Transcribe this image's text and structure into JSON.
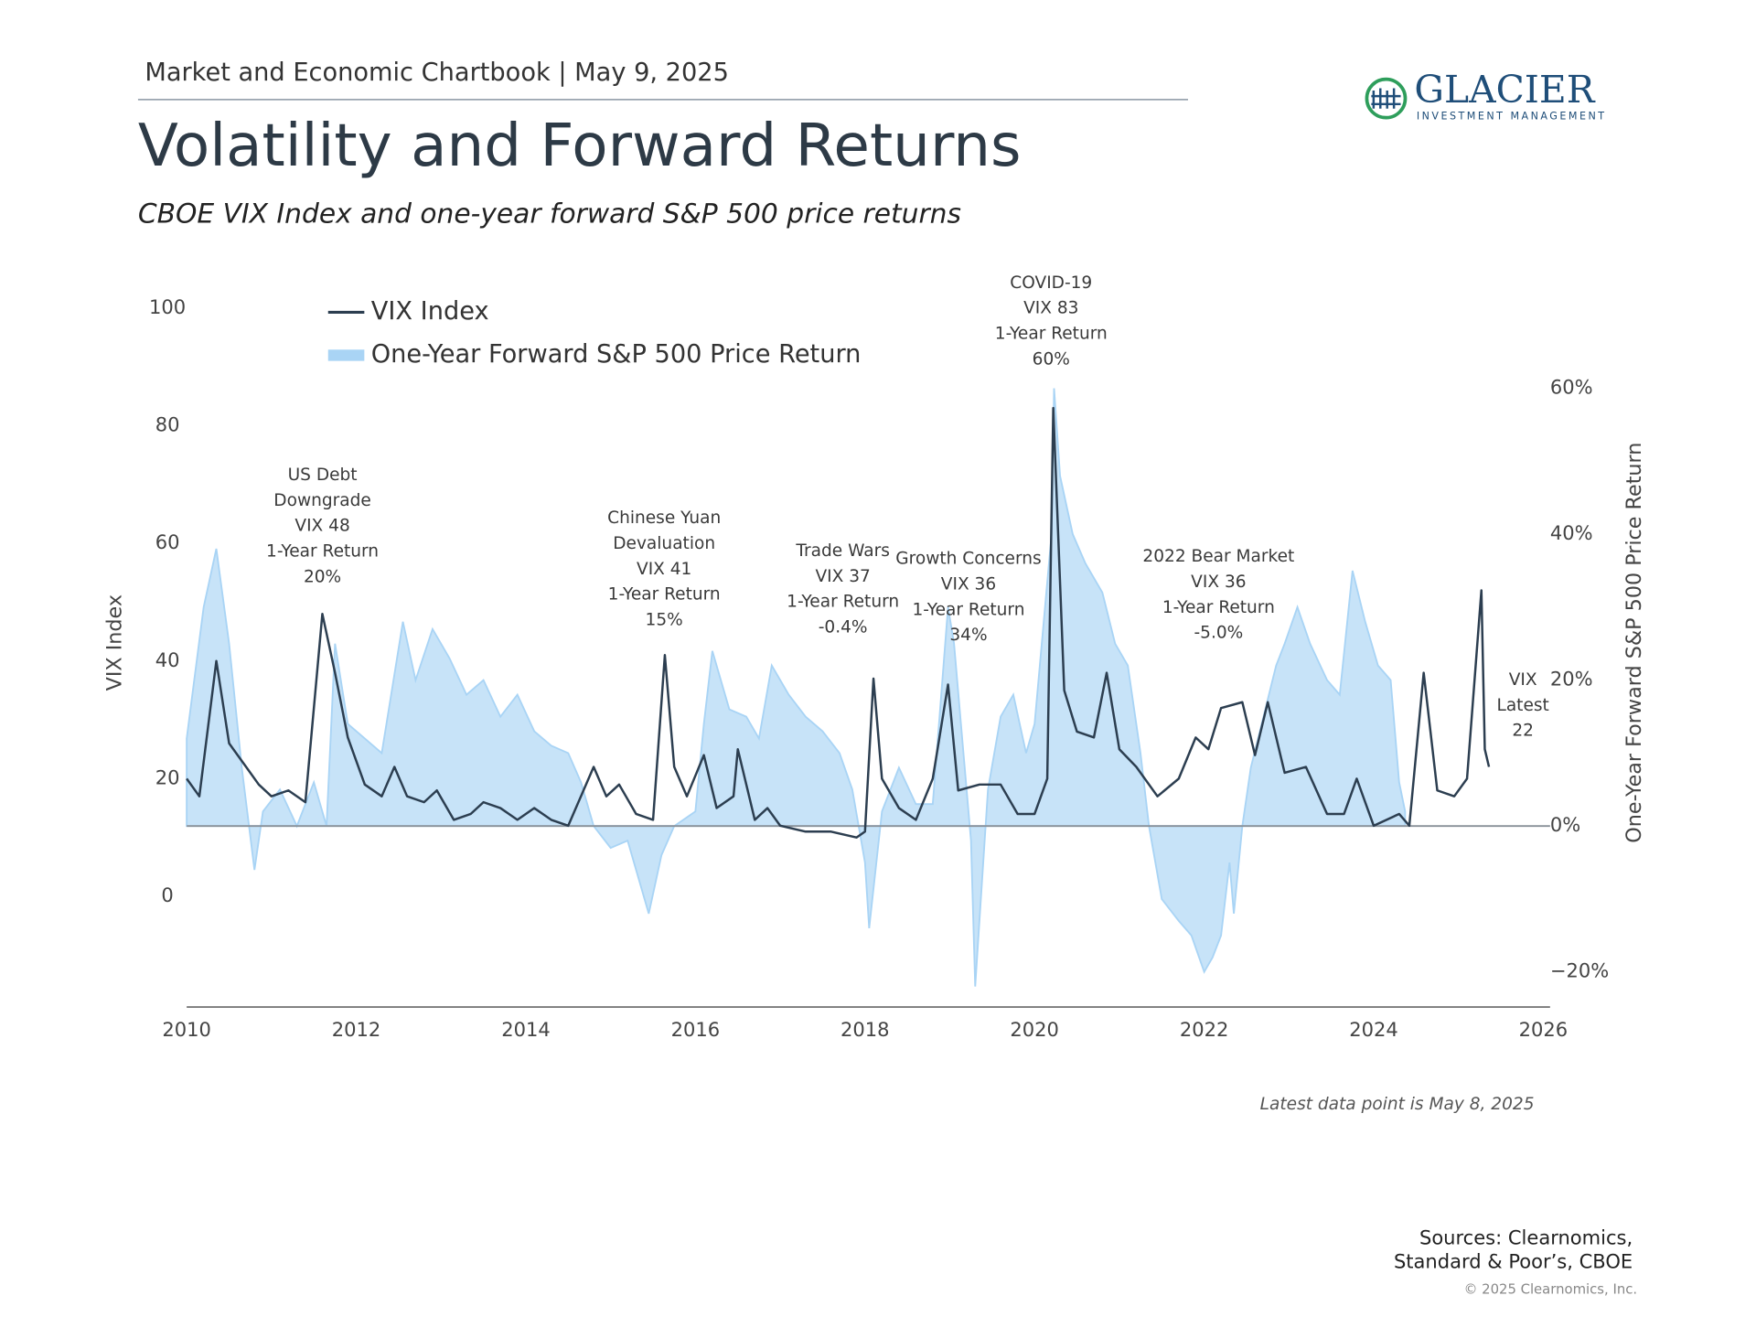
{
  "header": {
    "chartbook": "Market and Economic Chartbook | May 9, 2025"
  },
  "logo": {
    "name": "GLACIER",
    "tagline": "INVESTMENT MANAGEMENT"
  },
  "chart_data": {
    "type": "line",
    "title": "Volatility and Forward Returns",
    "subtitle": "CBOE VIX Index and one-year forward S&P 500 price returns",
    "ylabel": "VIX Index",
    "y2label": "One-Year Forward S&P 500 Price Return",
    "xlim": [
      2010,
      2026
    ],
    "xticks": [
      2010,
      2012,
      2014,
      2016,
      2018,
      2020,
      2022,
      2024,
      2026
    ],
    "ylim": [
      -18.8,
      106.2
    ],
    "yticks": [
      0,
      20,
      40,
      60,
      80,
      100
    ],
    "y2lim": [
      -24.8,
      76
    ],
    "y2ticks": [
      {
        "value": -20,
        "label": "−20%"
      },
      {
        "value": 0,
        "label": "0%"
      },
      {
        "value": 20,
        "label": "20%"
      },
      {
        "value": 40,
        "label": "40%"
      },
      {
        "value": 60,
        "label": "60%"
      }
    ],
    "series": [
      {
        "name": "VIX Index",
        "type": "line",
        "color": "#2c3e50",
        "x": [
          2010.0,
          2010.15,
          2010.35,
          2010.5,
          2010.7,
          2010.85,
          2011.0,
          2011.2,
          2011.4,
          2011.6,
          2011.75,
          2011.9,
          2012.1,
          2012.3,
          2012.45,
          2012.6,
          2012.8,
          2012.95,
          2013.15,
          2013.35,
          2013.5,
          2013.7,
          2013.9,
          2014.1,
          2014.3,
          2014.5,
          2014.8,
          2014.95,
          2015.1,
          2015.3,
          2015.5,
          2015.64,
          2015.75,
          2015.9,
          2016.1,
          2016.25,
          2016.45,
          2016.5,
          2016.7,
          2016.85,
          2017.0,
          2017.3,
          2017.6,
          2017.9,
          2018.0,
          2018.1,
          2018.2,
          2018.4,
          2018.6,
          2018.8,
          2018.98,
          2019.1,
          2019.35,
          2019.6,
          2019.8,
          2020.0,
          2020.15,
          2020.22,
          2020.35,
          2020.5,
          2020.7,
          2020.85,
          2021.0,
          2021.2,
          2021.45,
          2021.7,
          2021.9,
          2022.05,
          2022.2,
          2022.45,
          2022.6,
          2022.75,
          2022.95,
          2023.2,
          2023.45,
          2023.65,
          2023.8,
          2024.0,
          2024.3,
          2024.42,
          2024.59,
          2024.75,
          2024.95,
          2025.1,
          2025.27,
          2025.31,
          2025.36
        ],
        "values": [
          20,
          17,
          40,
          26,
          22,
          19,
          17,
          18,
          16,
          48,
          38,
          27,
          19,
          17,
          22,
          17,
          16,
          18,
          13,
          14,
          16,
          15,
          13,
          15,
          13,
          12,
          22,
          17,
          19,
          14,
          13,
          41,
          22,
          17,
          24,
          15,
          17,
          25,
          13,
          15,
          12,
          11,
          11,
          10,
          11,
          37,
          20,
          15,
          13,
          20,
          36,
          18,
          19,
          19,
          14,
          14,
          20,
          83,
          35,
          28,
          27,
          38,
          25,
          22,
          17,
          20,
          27,
          25,
          32,
          33,
          24,
          33,
          21,
          22,
          14,
          14,
          20,
          12,
          14,
          12,
          38,
          18,
          17,
          20,
          52,
          25,
          22
        ]
      },
      {
        "name": "One-Year Forward S&P 500 Price Return",
        "type": "area",
        "axis": "y2",
        "color": "#a9d4f5",
        "x": [
          2010.0,
          2010.2,
          2010.35,
          2010.5,
          2010.65,
          2010.8,
          2010.9,
          2011.1,
          2011.3,
          2011.5,
          2011.65,
          2011.75,
          2011.9,
          2012.1,
          2012.3,
          2012.55,
          2012.7,
          2012.9,
          2013.1,
          2013.3,
          2013.5,
          2013.7,
          2013.9,
          2014.1,
          2014.3,
          2014.5,
          2014.65,
          2014.8,
          2015.0,
          2015.2,
          2015.45,
          2015.6,
          2015.75,
          2016.0,
          2016.1,
          2016.2,
          2016.4,
          2016.6,
          2016.75,
          2016.9,
          2017.1,
          2017.3,
          2017.5,
          2017.7,
          2017.85,
          2018.0,
          2018.05,
          2018.2,
          2018.4,
          2018.6,
          2018.8,
          2018.98,
          2019.05,
          2019.25,
          2019.3,
          2019.45,
          2019.6,
          2019.75,
          2019.9,
          2020.0,
          2020.2,
          2020.23,
          2020.3,
          2020.45,
          2020.6,
          2020.8,
          2020.95,
          2021.1,
          2021.25,
          2021.35,
          2021.5,
          2021.7,
          2021.85,
          2022.0,
          2022.1,
          2022.2,
          2022.3,
          2022.35,
          2022.45,
          2022.55,
          2022.7,
          2022.85,
          2022.95,
          2023.1,
          2023.25,
          2023.45,
          2023.6,
          2023.75,
          2023.9,
          2024.05,
          2024.2,
          2024.3,
          2024.37
        ],
        "values": [
          12,
          30,
          38,
          25,
          8,
          -6,
          2,
          5,
          0,
          6,
          0,
          25,
          14,
          12,
          10,
          28,
          20,
          27,
          23,
          18,
          20,
          15,
          18,
          13,
          11,
          10,
          6,
          0,
          -3,
          -2,
          -12,
          -4,
          0,
          2,
          14,
          24,
          16,
          15,
          12,
          22,
          18,
          15,
          13,
          10,
          5,
          -5,
          -14,
          2,
          8,
          3,
          3,
          30,
          25,
          -2,
          -22,
          5,
          15,
          18,
          10,
          14,
          40,
          60,
          48,
          40,
          36,
          32,
          25,
          22,
          10,
          0,
          -10,
          -13,
          -15,
          -20,
          -18,
          -15,
          -5,
          -12,
          0,
          8,
          15,
          22,
          25,
          30,
          25,
          20,
          18,
          35,
          28,
          22,
          20,
          6,
          2
        ]
      }
    ],
    "annotations": [
      {
        "lines": [
          "US Debt",
          "Downgrade",
          "VIX 48",
          "1-Year Return",
          "20%"
        ]
      },
      {
        "lines": [
          "Chinese Yuan",
          "Devaluation",
          "VIX 41",
          "1-Year Return",
          "15%"
        ]
      },
      {
        "lines": [
          "Trade Wars",
          "VIX 37",
          "1-Year Return",
          "-0.4%"
        ]
      },
      {
        "lines": [
          "Growth Concerns",
          "VIX 36",
          "1-Year Return",
          "34%"
        ]
      },
      {
        "lines": [
          "COVID-19",
          "VIX 83",
          "1-Year Return",
          "60%"
        ]
      },
      {
        "lines": [
          "2022 Bear Market",
          "VIX 36",
          "1-Year Return",
          "-5.0%"
        ]
      },
      {
        "lines": [
          "VIX",
          "Latest",
          "22"
        ]
      }
    ],
    "note": "Latest data point is May 8, 2025"
  },
  "footer": {
    "sources": [
      "Sources: Clearnomics,",
      "Standard & Poor’s, CBOE"
    ],
    "copyright": "© 2025 Clearnomics, Inc."
  }
}
